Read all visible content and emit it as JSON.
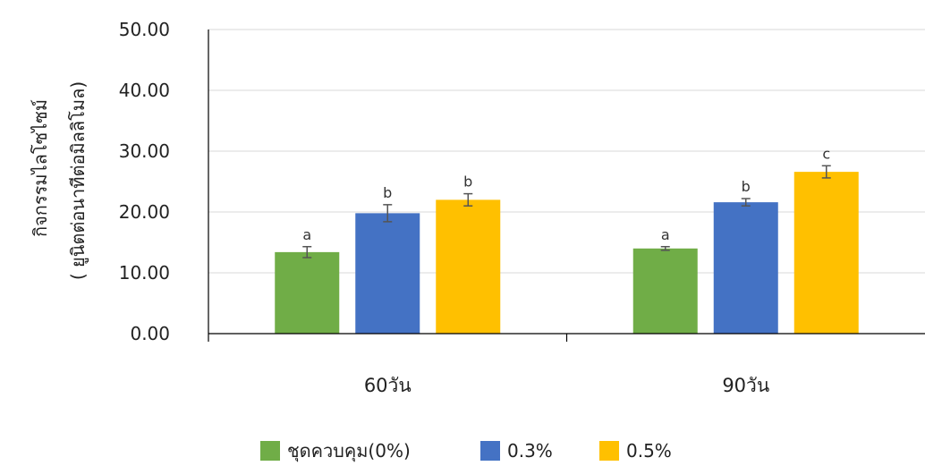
{
  "chart_data": {
    "type": "bar",
    "categories": [
      "60วัน",
      "90วัน"
    ],
    "series": [
      {
        "name": "ชุดควบคุม(0%)",
        "color": "#70AD47",
        "values": [
          13.4,
          14.0
        ],
        "errors": [
          0.9,
          0.3
        ],
        "labels": [
          "a",
          "a"
        ]
      },
      {
        "name": "0.3%",
        "color": "#4472C4",
        "values": [
          19.8,
          21.6
        ],
        "errors": [
          1.4,
          0.6
        ],
        "labels": [
          "b",
          "b"
        ]
      },
      {
        "name": "0.5%",
        "color": "#FFC000",
        "values": [
          22.0,
          26.6
        ],
        "errors": [
          1.0,
          1.0
        ],
        "labels": [
          "b",
          "c"
        ]
      }
    ],
    "ylabel_line1": "กิจกรรมไลโซไซม์",
    "ylabel_line2": "( ยูนิตต่อนาทีต่อมิลลิโมล)",
    "ylim": [
      0,
      50
    ],
    "yticks": [
      "0.00",
      "10.00",
      "20.00",
      "30.00",
      "40.00",
      "50.00"
    ],
    "grid": true,
    "legend_position": "bottom"
  }
}
